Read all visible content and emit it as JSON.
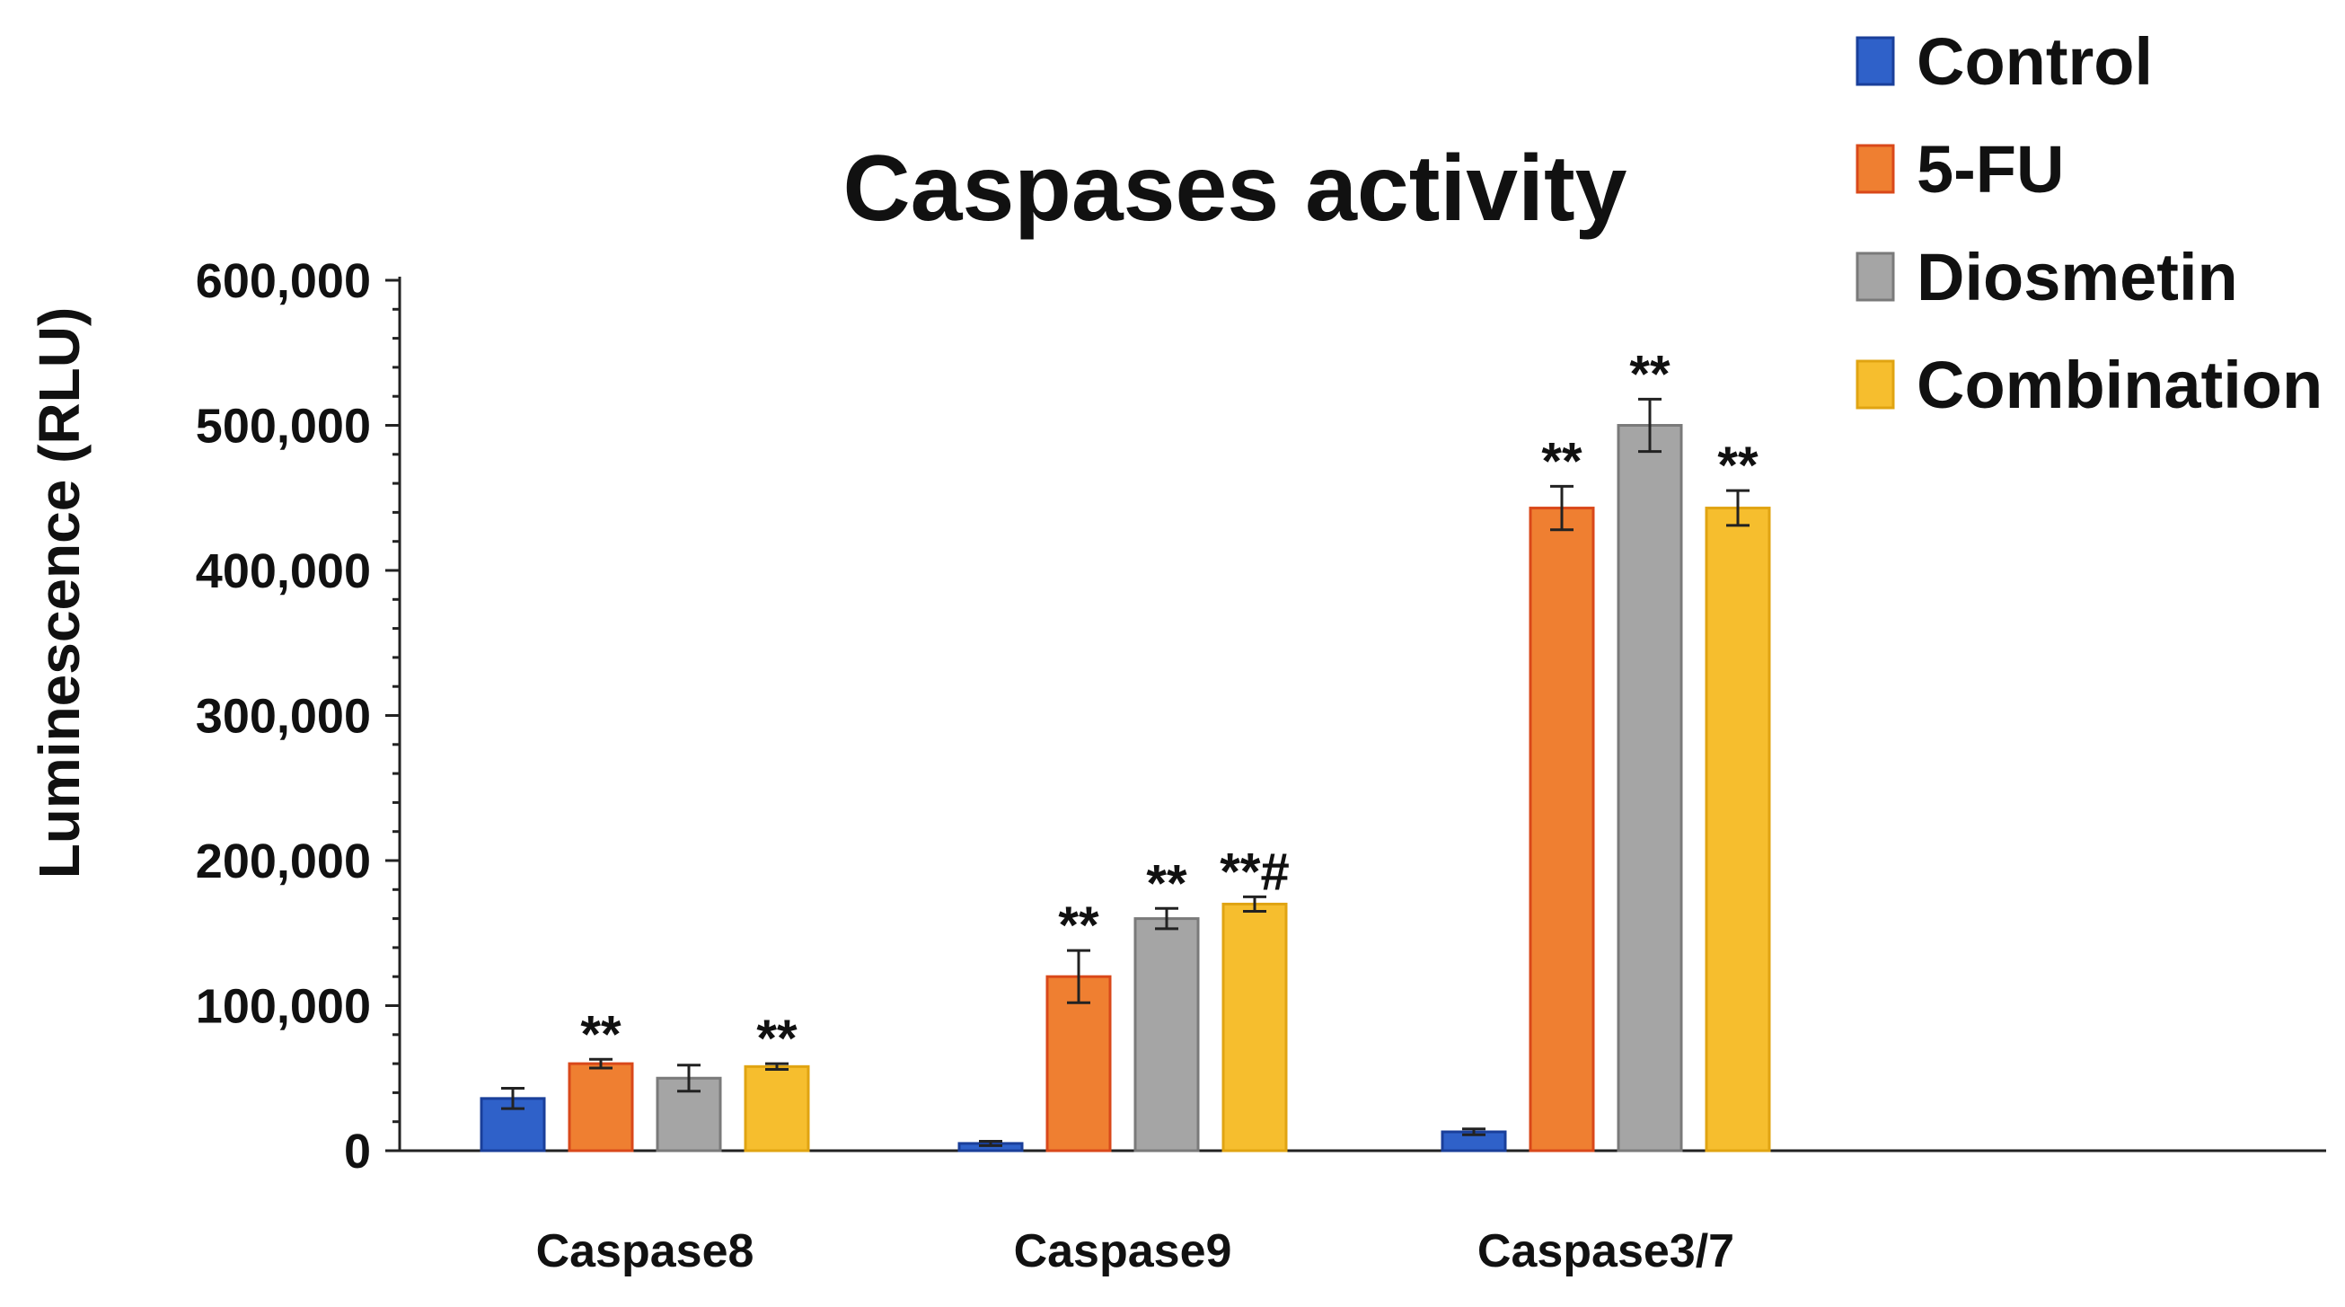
{
  "chart_data": {
    "type": "bar",
    "title": "Caspases activity",
    "xlabel": "",
    "ylabel": "Luminescence (RLU)",
    "ylim": [
      0,
      600000
    ],
    "yticks": [
      0,
      100000,
      200000,
      300000,
      400000,
      500000,
      600000
    ],
    "ytick_labels": [
      "0",
      "100,000",
      "200,000",
      "300,000",
      "400,000",
      "500,000",
      "600,000"
    ],
    "categories": [
      "Caspase8",
      "Caspase9",
      "Caspase3/7"
    ],
    "legend_position": "top-right",
    "series": [
      {
        "name": "Control",
        "color": "#2f61c9",
        "edge": "#1a3f9a",
        "values": [
          36000,
          5000,
          13000
        ],
        "errors": [
          7000,
          1500,
          2000
        ],
        "annotations": [
          "",
          "",
          ""
        ]
      },
      {
        "name": "5-FU",
        "color": "#ef7f31",
        "edge": "#d9481a",
        "values": [
          60000,
          120000,
          443000
        ],
        "errors": [
          3000,
          18000,
          15000
        ],
        "annotations": [
          "**",
          "**",
          "**"
        ]
      },
      {
        "name": "Diosmetin",
        "color": "#a5a5a5",
        "edge": "#7a7a7a",
        "values": [
          50000,
          160000,
          500000
        ],
        "errors": [
          9000,
          7000,
          18000
        ],
        "annotations": [
          "",
          "**",
          "**"
        ]
      },
      {
        "name": "Combination",
        "color": "#f6be2e",
        "edge": "#e0a412",
        "values": [
          58000,
          170000,
          443000
        ],
        "errors": [
          2000,
          5000,
          12000
        ],
        "annotations": [
          "**",
          "**#",
          "**"
        ]
      }
    ]
  }
}
